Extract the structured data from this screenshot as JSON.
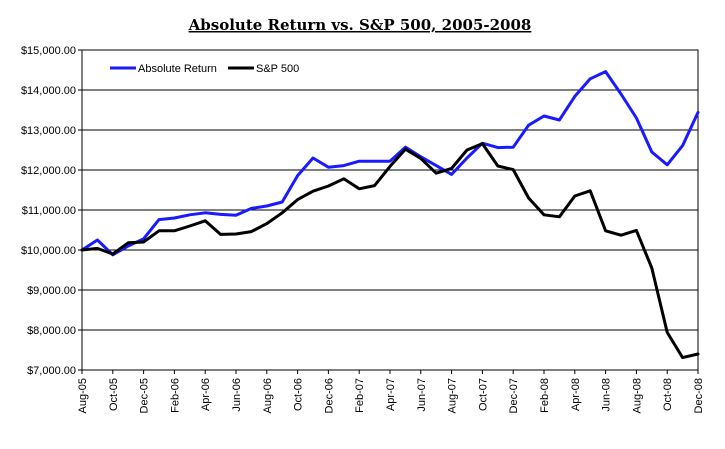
{
  "chart_data": {
    "type": "line",
    "title": "Absolute Return vs. S&P 500, 2005-2008",
    "xlabel": "",
    "ylabel": "",
    "ylim": [
      7000,
      15000
    ],
    "y_ticks": [
      7000,
      8000,
      9000,
      10000,
      11000,
      12000,
      13000,
      14000,
      15000
    ],
    "y_tick_labels": [
      "$7,000.00",
      "$8,000.00",
      "$9,000.00",
      "$10,000.00",
      "$11,000.00",
      "$12,000.00",
      "$13,000.00",
      "$14,000.00",
      "$15,000.00"
    ],
    "grid": true,
    "legend_position": "top-left",
    "x_tick_labels": [
      "Aug-05",
      "Oct-05",
      "Dec-05",
      "Feb-06",
      "Apr-06",
      "Jun-06",
      "Aug-06",
      "Oct-06",
      "Dec-06",
      "Feb-07",
      "Apr-07",
      "Jun-07",
      "Aug-07",
      "Oct-07",
      "Dec-07",
      "Feb-08",
      "Apr-08",
      "Jun-08",
      "Aug-08",
      "Oct-08",
      "Dec-08"
    ],
    "x_months": [
      "Aug-05",
      "Sep-05",
      "Oct-05",
      "Nov-05",
      "Dec-05",
      "Jan-06",
      "Feb-06",
      "Mar-06",
      "Apr-06",
      "May-06",
      "Jun-06",
      "Jul-06",
      "Aug-06",
      "Sep-06",
      "Oct-06",
      "Nov-06",
      "Dec-06",
      "Jan-07",
      "Feb-07",
      "Mar-07",
      "Apr-07",
      "May-07",
      "Jun-07",
      "Jul-07",
      "Aug-07",
      "Sep-07",
      "Oct-07",
      "Nov-07",
      "Dec-07",
      "Jan-08",
      "Feb-08",
      "Mar-08",
      "Apr-08",
      "May-08",
      "Jun-08",
      "Jul-08",
      "Aug-08",
      "Sep-08",
      "Oct-08",
      "Nov-08",
      "Dec-08"
    ],
    "series": [
      {
        "name": "Absolute Return",
        "color": "#1a1aff",
        "values": [
          10000,
          10250,
          9880,
          10100,
          10280,
          10760,
          10800,
          10880,
          10930,
          10890,
          10870,
          11040,
          11100,
          11200,
          11860,
          12300,
          12070,
          12110,
          12220,
          12220,
          12220,
          12570,
          12330,
          12110,
          11890,
          12300,
          12670,
          12560,
          12570,
          13120,
          13350,
          13250,
          13840,
          14280,
          14460,
          13900,
          13300,
          12450,
          12130,
          12610,
          13440
        ]
      },
      {
        "name": "S&P 500",
        "color": "#000000",
        "values": [
          10000,
          10040,
          9900,
          10180,
          10200,
          10480,
          10480,
          10600,
          10730,
          10390,
          10400,
          10460,
          10660,
          10930,
          11260,
          11470,
          11600,
          11780,
          11530,
          11610,
          12090,
          12520,
          12290,
          11920,
          12040,
          12500,
          12660,
          12100,
          12010,
          11300,
          10880,
          10830,
          11350,
          11480,
          10480,
          10370,
          10490,
          9550,
          7940,
          7310,
          7400
        ]
      }
    ]
  }
}
